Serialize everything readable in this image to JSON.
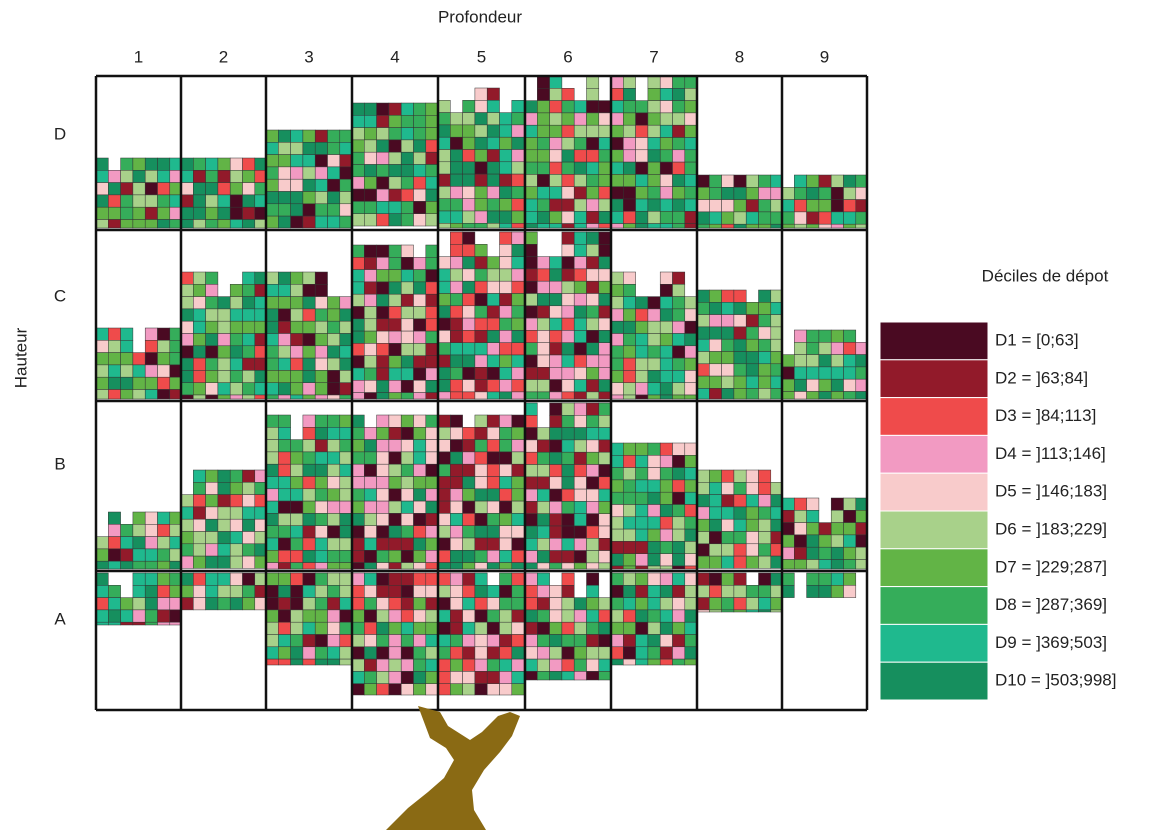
{
  "x_axis_title": "Profondeur",
  "y_axis_title": "Hauteur",
  "columns": [
    "1",
    "2",
    "3",
    "4",
    "5",
    "6",
    "7",
    "8",
    "9"
  ],
  "rows": [
    "D",
    "C",
    "B",
    "A"
  ],
  "legend": {
    "title": "Déciles de dépot",
    "items": [
      {
        "label": "D1 = [0;63]",
        "color": "#4a0a22"
      },
      {
        "label": "D2 = ]63;84]",
        "color": "#921a2a"
      },
      {
        "label": "D3 = ]84;113]",
        "color": "#ef4b4b"
      },
      {
        "label": "D4 = ]113;146]",
        "color": "#f29ac2"
      },
      {
        "label": "D5 = ]146;183]",
        "color": "#f8cbcb"
      },
      {
        "label": "D6 = ]183;229]",
        "color": "#a8d18a"
      },
      {
        "label": "D7 = ]229;287]",
        "color": "#62b446"
      },
      {
        "label": "D8 = ]287;369]",
        "color": "#35ad5a"
      },
      {
        "label": "D9 = ]369;503]",
        "color": "#1fb98e"
      },
      {
        "label": "D10 = ]503;998]",
        "color": "#168f5e"
      }
    ]
  }
}
